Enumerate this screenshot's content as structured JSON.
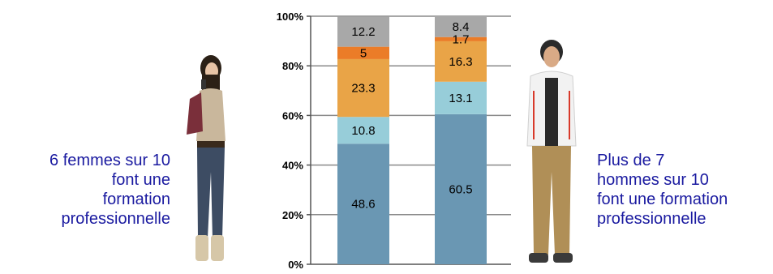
{
  "left_caption": [
    "6 femmes sur 10",
    "font une",
    "formation",
    "professionnelle"
  ],
  "right_caption": [
    "Plus de 7",
    "hommes sur 10",
    "font une formation",
    "professionnelle"
  ],
  "colors": {
    "caption": "#1a1aa0",
    "segments": [
      "#6a97b3",
      "#97cdd9",
      "#e9a447",
      "#eb7c28",
      "#a8a8a8"
    ],
    "woman_image": [
      "#c9b79c",
      "#3d4c63",
      "#2b2016",
      "#d6c7a8"
    ],
    "man_image": [
      "#b08f57",
      "#f2f2f2",
      "#2a2a2a",
      "#d83a2b"
    ]
  },
  "figures": [
    {
      "name": "woman-photo",
      "depicts": "young woman with phone and backpack"
    },
    {
      "name": "man-photo",
      "depicts": "young man in white jacket"
    }
  ],
  "chart_data": {
    "type": "bar",
    "stacked": true,
    "categories": [
      "",
      ""
    ],
    "series": [
      {
        "values": [
          48.6,
          60.5
        ]
      },
      {
        "values": [
          10.8,
          13.1
        ]
      },
      {
        "values": [
          23.3,
          16.3
        ]
      },
      {
        "values": [
          5,
          1.7
        ]
      },
      {
        "values": [
          12.2,
          8.4
        ]
      }
    ],
    "yticks": [
      "0%",
      "20%",
      "40%",
      "60%",
      "80%",
      "100%"
    ],
    "ylim": [
      0,
      100
    ],
    "grid": true,
    "legend": "none"
  }
}
